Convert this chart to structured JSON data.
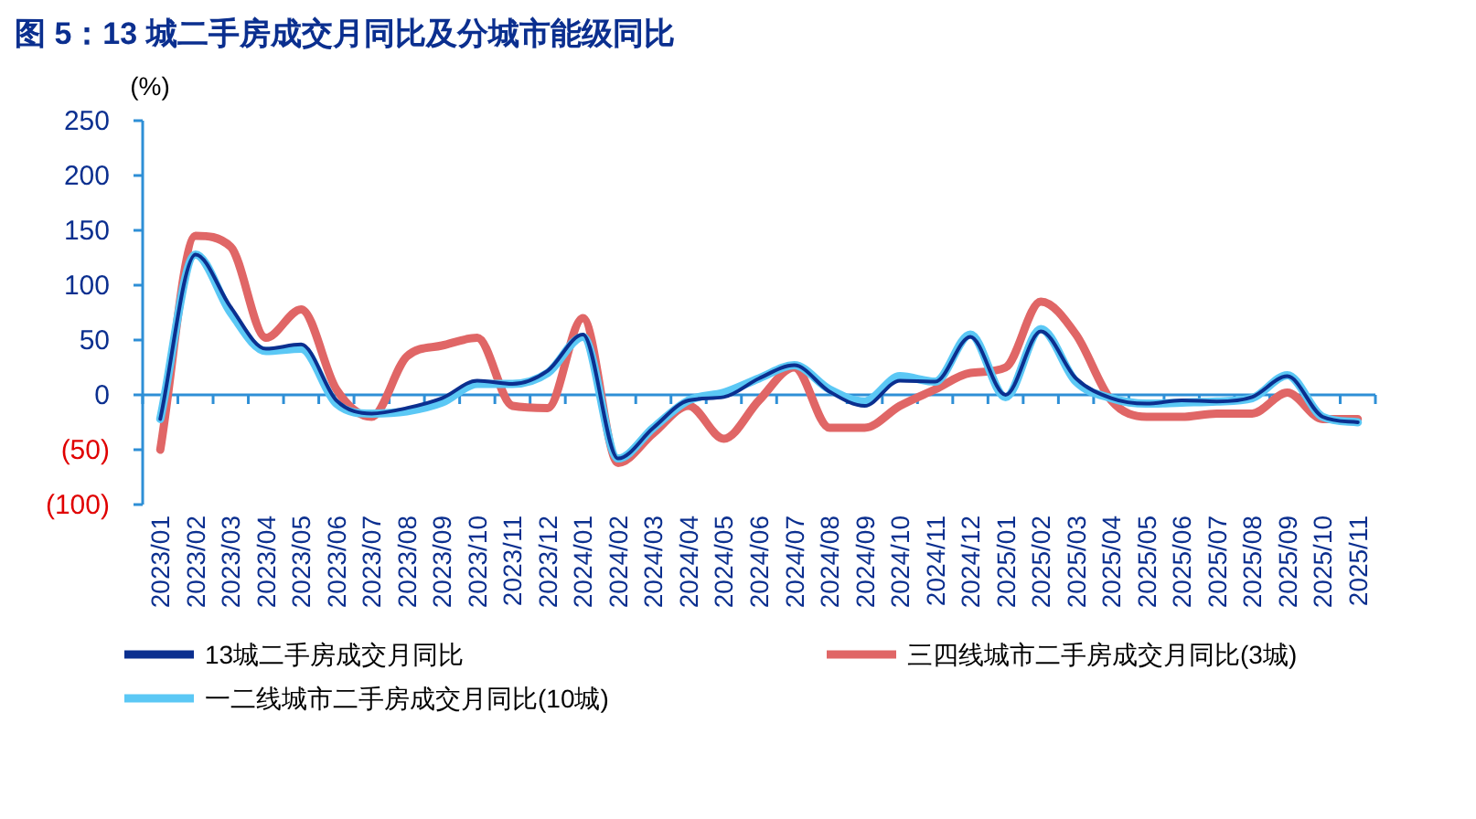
{
  "chart_data": {
    "type": "line",
    "title": "图 5：13 城二手房成交月同比及分城市能级同比",
    "ylabel": "(%)",
    "categories": [
      "2023/01",
      "2023/02",
      "2023/03",
      "2023/04",
      "2023/05",
      "2023/06",
      "2023/07",
      "2023/08",
      "2023/09",
      "2023/10",
      "2023/11",
      "2023/12",
      "2024/01",
      "2024/02",
      "2024/03",
      "2024/04",
      "2024/05",
      "2024/06",
      "2024/07",
      "2024/08",
      "2024/09",
      "2024/10",
      "2024/11",
      "2024/12",
      "2025/01",
      "2025/02",
      "2025/03",
      "2025/04",
      "2025/05",
      "2025/06",
      "2025/07",
      "2025/08",
      "2025/09",
      "2025/10",
      "2025/11"
    ],
    "series": [
      {
        "name": "13城二手房成交月同比",
        "color": "#0b2f8f",
        "values": [
          -22,
          128,
          80,
          42,
          46,
          -5,
          -17,
          -12,
          -3,
          13,
          10,
          22,
          55,
          -58,
          -30,
          -5,
          -2,
          15,
          27,
          3,
          -10,
          13,
          12,
          53,
          0,
          58,
          15,
          -3,
          -8,
          -5,
          -6,
          -2,
          17,
          -20,
          -25
        ]
      },
      {
        "name": "三四线城市二手房成交月同比(3城)",
        "color": "#e06666",
        "values": [
          -50,
          145,
          135,
          52,
          78,
          5,
          -20,
          35,
          45,
          52,
          -10,
          -12,
          70,
          -62,
          -35,
          -10,
          -40,
          -5,
          25,
          -30,
          -30,
          -10,
          5,
          20,
          25,
          85,
          55,
          -5,
          -20,
          -20,
          -17,
          -17,
          2,
          -22,
          -22
        ]
      },
      {
        "name": "一二线城市二手房成交月同比(10城)",
        "color": "#5bc8f5",
        "values": [
          -22,
          128,
          75,
          40,
          42,
          -8,
          -17,
          -15,
          -7,
          10,
          10,
          20,
          53,
          -58,
          -30,
          -5,
          2,
          15,
          27,
          5,
          -6,
          17,
          12,
          55,
          -2,
          60,
          12,
          -3,
          -8,
          -7,
          -6,
          -3,
          18,
          -20,
          -25
        ]
      }
    ],
    "ylim": [
      -100,
      250
    ],
    "yticks": [
      {
        "value": -100,
        "label": "(100)"
      },
      {
        "value": -50,
        "label": "(50)"
      },
      0,
      50,
      100,
      150,
      200,
      250
    ],
    "ref_lines": [
      {
        "axis": "y",
        "value": 0,
        "color": "#2e8fd6"
      }
    ],
    "legend": "bottom",
    "grid": false
  }
}
